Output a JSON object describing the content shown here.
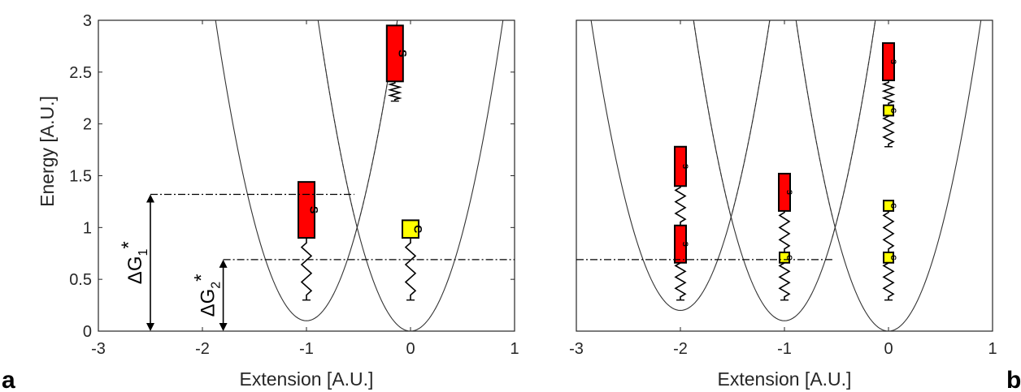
{
  "chart_data": [
    {
      "panel": "a",
      "type": "line",
      "xlabel": "Extension [A.U.]",
      "ylabel": "Energy [A.U.]",
      "xlim": [
        -3,
        1
      ],
      "ylim": [
        0,
        3
      ],
      "xticks": [
        "-3",
        "-2",
        "-1",
        "0",
        "1"
      ],
      "yticks": [
        "0",
        "0.5",
        "1",
        "1.5",
        "2",
        "2.5",
        "3"
      ],
      "series": [
        {
          "style": "solid",
          "curve": "parabola",
          "vertex": [
            -1,
            0.1
          ],
          "k": 3.8
        },
        {
          "style": "solid",
          "curve": "parabola",
          "vertex": [
            0,
            0
          ],
          "k": 3.8
        },
        {
          "style": "dashed",
          "curve": "parabola",
          "vertex": [
            -1,
            0.1
          ],
          "k": 3.8,
          "segment": [
            -0.54,
            0.15
          ]
        },
        {
          "style": "dashed",
          "curve": "parabola",
          "vertex": [
            0,
            0
          ],
          "k": 3.8,
          "segment": [
            -0.85,
            -0.54
          ]
        }
      ],
      "reference_lines": [
        {
          "style": "dashdot",
          "y": 1.32,
          "x_from": -2.5,
          "x_to": -0.54
        },
        {
          "style": "dashdot",
          "y": 0.69,
          "x_from": -1.8,
          "x_to": 1.0
        }
      ],
      "annotations": [
        {
          "text": "ΔG",
          "subscript": "1",
          "superscript": "*",
          "value": 1.32,
          "x": -2.5
        },
        {
          "text": "ΔG",
          "subscript": "2",
          "superscript": "*",
          "value": 0.69,
          "x": -1.8
        }
      ],
      "glyphs": [
        {
          "x": -1,
          "spring": [
            0.3,
            0.9
          ],
          "block": {
            "label": "S",
            "color": "#ff0000",
            "y": [
              0.9,
              1.44
            ]
          }
        },
        {
          "x": 0,
          "spring": [
            0.3,
            0.9
          ],
          "block": {
            "label": "C",
            "color": "#ffff00",
            "y": [
              0.9,
              1.07
            ]
          }
        },
        {
          "x": -0.15,
          "spring": [
            2.22,
            2.41
          ],
          "block": {
            "label": "S",
            "color": "#ff0000",
            "y": [
              2.41,
              2.95
            ]
          }
        }
      ],
      "panel_label": "a"
    },
    {
      "panel": "b",
      "type": "line",
      "xlabel": "Extension [A.U.]",
      "ylabel": "",
      "xlim": [
        -3,
        1
      ],
      "ylim": [
        0,
        3
      ],
      "xticks": [
        "-3",
        "-2",
        "-1",
        "0",
        "1"
      ],
      "yticks": [],
      "series": [
        {
          "style": "solid",
          "curve": "parabola",
          "vertex": [
            -2,
            0.2
          ],
          "k": 3.8
        },
        {
          "style": "solid",
          "curve": "parabola",
          "vertex": [
            -1,
            0.1
          ],
          "k": 3.8
        },
        {
          "style": "solid",
          "curve": "parabola",
          "vertex": [
            0,
            0
          ],
          "k": 3.8
        },
        {
          "style": "dashed",
          "curve": "parabola",
          "vertex": [
            -2,
            0.2
          ],
          "k": 3.8,
          "segment": [
            -1.5,
            -0.7
          ]
        },
        {
          "style": "dashed",
          "curve": "parabola",
          "vertex": [
            -1,
            0.1
          ],
          "k": 3.8,
          "segment": [
            -2.3,
            -1.5
          ]
        },
        {
          "style": "dashed",
          "curve": "parabola",
          "vertex": [
            -1,
            0.1
          ],
          "k": 3.8,
          "segment": [
            -0.54,
            0.1
          ]
        },
        {
          "style": "dashed",
          "curve": "parabola",
          "vertex": [
            0,
            0
          ],
          "k": 3.8,
          "segment": [
            -0.9,
            -0.54
          ]
        }
      ],
      "reference_lines": [
        {
          "style": "dashdot",
          "y": 0.69,
          "x_from": -3.0,
          "x_to": -0.54
        }
      ],
      "glyphs": [
        {
          "x": -2,
          "spring": [
            0.3,
            0.69
          ],
          "block": {
            "label": "S",
            "color": "#ff0000",
            "y": [
              0.66,
              1.02
            ]
          }
        },
        {
          "x": -2,
          "spring": [
            1.02,
            1.42
          ],
          "block": {
            "label": "S",
            "color": "#ff0000",
            "y": [
              1.4,
              1.78
            ]
          }
        },
        {
          "x": -1,
          "spring": [
            0.3,
            0.69
          ],
          "block": {
            "label": "C",
            "color": "#ffff00",
            "y": [
              0.66,
              0.76
            ]
          }
        },
        {
          "x": -1,
          "spring": [
            0.76,
            1.18
          ],
          "block": {
            "label": "S",
            "color": "#ff0000",
            "y": [
              1.16,
              1.52
            ]
          }
        },
        {
          "x": 0,
          "spring": [
            0.3,
            0.69
          ],
          "block": {
            "label": "C",
            "color": "#ffff00",
            "y": [
              0.66,
              0.76
            ]
          }
        },
        {
          "x": 0,
          "spring": [
            0.76,
            1.18
          ],
          "block": {
            "label": "C",
            "color": "#ffff00",
            "y": [
              1.16,
              1.26
            ]
          }
        },
        {
          "x": 0,
          "spring": [
            1.78,
            2.1
          ],
          "block": {
            "label": "C",
            "color": "#ffff00",
            "y": [
              2.08,
              2.18
            ]
          }
        },
        {
          "x": 0,
          "spring": [
            2.18,
            2.42
          ],
          "block": {
            "label": "S",
            "color": "#ff0000",
            "y": [
              2.42,
              2.78
            ]
          }
        }
      ],
      "panel_label": "b"
    }
  ]
}
